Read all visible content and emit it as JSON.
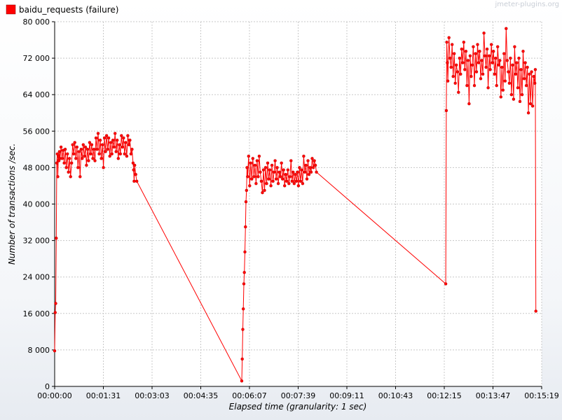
{
  "chart_data": {
    "type": "line",
    "watermark": "jmeter-plugins.org",
    "xlabel": "Elapsed time (granularity: 1 sec)",
    "ylabel": "Number of transactions /sec.",
    "ylim": [
      0,
      80000
    ],
    "xlim_seconds": [
      0,
      919
    ],
    "y_ticks": [
      0,
      8000,
      16000,
      24000,
      32000,
      40000,
      48000,
      56000,
      64000,
      72000,
      80000
    ],
    "y_tick_labels": [
      "0",
      "8 000",
      "16 000",
      "24 000",
      "32 000",
      "40 000",
      "48 000",
      "56 000",
      "64 000",
      "72 000",
      "80 000"
    ],
    "x_tick_labels": [
      "00:00:00",
      "00:01:31",
      "00:03:03",
      "00:04:35",
      "00:06:07",
      "00:07:39",
      "00:09:11",
      "00:10:43",
      "00:12:15",
      "00:13:47",
      "00:15:19"
    ],
    "grid": true,
    "legend_position": "top-left",
    "colors": {
      "series": "#ff0000",
      "grid": "#c8c8c8",
      "axis": "#000000"
    },
    "series": [
      {
        "name": "baidu_requests (failure)",
        "color": "#ff0000",
        "x_unit": "seconds elapsed",
        "points": [
          [
            0,
            7800
          ],
          [
            1,
            16200
          ],
          [
            2,
            18200
          ],
          [
            3,
            32500
          ],
          [
            4,
            49000
          ],
          [
            5,
            51000
          ],
          [
            6,
            46000
          ],
          [
            7,
            50500
          ],
          [
            8,
            49500
          ],
          [
            9,
            51500
          ],
          [
            10,
            50000
          ],
          [
            12,
            52500
          ],
          [
            14,
            50000
          ],
          [
            16,
            51800
          ],
          [
            18,
            49000
          ],
          [
            20,
            52000
          ],
          [
            22,
            48000
          ],
          [
            24,
            51000
          ],
          [
            26,
            47000
          ],
          [
            28,
            50000
          ],
          [
            30,
            46000
          ],
          [
            32,
            49000
          ],
          [
            34,
            53000
          ],
          [
            36,
            51000
          ],
          [
            38,
            53500
          ],
          [
            40,
            50000
          ],
          [
            42,
            52500
          ],
          [
            44,
            48000
          ],
          [
            46,
            51500
          ],
          [
            48,
            46000
          ],
          [
            50,
            52000
          ],
          [
            52,
            50000
          ],
          [
            54,
            53000
          ],
          [
            56,
            50500
          ],
          [
            58,
            52500
          ],
          [
            60,
            48500
          ],
          [
            62,
            52000
          ],
          [
            64,
            49500
          ],
          [
            66,
            53500
          ],
          [
            68,
            51000
          ],
          [
            70,
            53000
          ],
          [
            72,
            50000
          ],
          [
            74,
            52000
          ],
          [
            76,
            49500
          ],
          [
            78,
            54500
          ],
          [
            80,
            52000
          ],
          [
            82,
            55500
          ],
          [
            84,
            51000
          ],
          [
            86,
            54000
          ],
          [
            88,
            50000
          ],
          [
            90,
            53000
          ],
          [
            92,
            48000
          ],
          [
            94,
            54500
          ],
          [
            96,
            51500
          ],
          [
            98,
            55000
          ],
          [
            100,
            52000
          ],
          [
            102,
            54500
          ],
          [
            104,
            50500
          ],
          [
            106,
            53500
          ],
          [
            108,
            51000
          ],
          [
            110,
            54000
          ],
          [
            112,
            52500
          ],
          [
            114,
            55500
          ],
          [
            116,
            51500
          ],
          [
            118,
            54000
          ],
          [
            120,
            50000
          ],
          [
            122,
            53000
          ],
          [
            124,
            51000
          ],
          [
            126,
            55000
          ],
          [
            128,
            52500
          ],
          [
            130,
            54500
          ],
          [
            132,
            51000
          ],
          [
            134,
            53500
          ],
          [
            136,
            50500
          ],
          [
            138,
            55000
          ],
          [
            140,
            53000
          ],
          [
            142,
            54000
          ],
          [
            144,
            51000
          ],
          [
            146,
            52000
          ],
          [
            148,
            49000
          ],
          [
            149,
            47500
          ],
          [
            150,
            45000
          ],
          [
            151,
            48500
          ],
          [
            153,
            46500
          ],
          [
            155,
            45000
          ],
          [
            353,
            1200
          ],
          [
            354,
            6000
          ],
          [
            355,
            12500
          ],
          [
            356,
            17000
          ],
          [
            357,
            22500
          ],
          [
            358,
            25000
          ],
          [
            359,
            29500
          ],
          [
            360,
            35000
          ],
          [
            361,
            40500
          ],
          [
            362,
            43000
          ],
          [
            363,
            48000
          ],
          [
            364,
            46000
          ],
          [
            366,
            50500
          ],
          [
            368,
            44000
          ],
          [
            370,
            49000
          ],
          [
            372,
            45500
          ],
          [
            374,
            50000
          ],
          [
            376,
            46000
          ],
          [
            378,
            48500
          ],
          [
            380,
            44500
          ],
          [
            382,
            49500
          ],
          [
            384,
            46000
          ],
          [
            386,
            50500
          ],
          [
            388,
            47000
          ],
          [
            390,
            45000
          ],
          [
            392,
            42500
          ],
          [
            394,
            47500
          ],
          [
            396,
            43000
          ],
          [
            398,
            48000
          ],
          [
            400,
            44500
          ],
          [
            402,
            49000
          ],
          [
            404,
            45500
          ],
          [
            406,
            47500
          ],
          [
            408,
            44000
          ],
          [
            410,
            48500
          ],
          [
            412,
            45000
          ],
          [
            414,
            47000
          ],
          [
            416,
            49500
          ],
          [
            418,
            45500
          ],
          [
            420,
            48000
          ],
          [
            422,
            44500
          ],
          [
            424,
            47000
          ],
          [
            426,
            46000
          ],
          [
            428,
            49000
          ],
          [
            430,
            45500
          ],
          [
            432,
            47500
          ],
          [
            434,
            44000
          ],
          [
            436,
            46500
          ],
          [
            438,
            45000
          ],
          [
            440,
            47500
          ],
          [
            442,
            44500
          ],
          [
            444,
            46000
          ],
          [
            446,
            49500
          ],
          [
            448,
            45000
          ],
          [
            450,
            47000
          ],
          [
            452,
            44500
          ],
          [
            454,
            46500
          ],
          [
            456,
            45000
          ],
          [
            458,
            47000
          ],
          [
            460,
            44000
          ],
          [
            462,
            48000
          ],
          [
            464,
            45000
          ],
          [
            466,
            47500
          ],
          [
            468,
            44500
          ],
          [
            470,
            50500
          ],
          [
            472,
            47000
          ],
          [
            474,
            48500
          ],
          [
            476,
            45500
          ],
          [
            478,
            49500
          ],
          [
            480,
            46500
          ],
          [
            482,
            48000
          ],
          [
            484,
            47000
          ],
          [
            486,
            50000
          ],
          [
            488,
            48000
          ],
          [
            490,
            49500
          ],
          [
            492,
            48500
          ],
          [
            494,
            47000
          ],
          [
            738,
            22500
          ],
          [
            739,
            60500
          ],
          [
            740,
            75500
          ],
          [
            741,
            71000
          ],
          [
            742,
            67000
          ],
          [
            744,
            76500
          ],
          [
            746,
            72000
          ],
          [
            748,
            70000
          ],
          [
            750,
            75000
          ],
          [
            752,
            68000
          ],
          [
            754,
            73000
          ],
          [
            756,
            66500
          ],
          [
            758,
            70500
          ],
          [
            760,
            69000
          ],
          [
            762,
            64500
          ],
          [
            764,
            72000
          ],
          [
            766,
            68500
          ],
          [
            768,
            74000
          ],
          [
            770,
            71000
          ],
          [
            772,
            75500
          ],
          [
            774,
            69500
          ],
          [
            776,
            73500
          ],
          [
            778,
            66000
          ],
          [
            780,
            71500
          ],
          [
            782,
            62000
          ],
          [
            784,
            72500
          ],
          [
            786,
            68000
          ],
          [
            788,
            70500
          ],
          [
            790,
            74500
          ],
          [
            792,
            66000
          ],
          [
            794,
            73000
          ],
          [
            796,
            69000
          ],
          [
            798,
            75000
          ],
          [
            800,
            71000
          ],
          [
            802,
            73500
          ],
          [
            804,
            67500
          ],
          [
            806,
            71500
          ],
          [
            808,
            68500
          ],
          [
            810,
            77500
          ],
          [
            812,
            72500
          ],
          [
            814,
            70000
          ],
          [
            816,
            74000
          ],
          [
            818,
            65500
          ],
          [
            820,
            72500
          ],
          [
            822,
            69500
          ],
          [
            824,
            75000
          ],
          [
            826,
            71000
          ],
          [
            828,
            73500
          ],
          [
            830,
            68500
          ],
          [
            832,
            72000
          ],
          [
            834,
            66000
          ],
          [
            836,
            74500
          ],
          [
            838,
            70500
          ],
          [
            840,
            71500
          ],
          [
            842,
            63500
          ],
          [
            844,
            70000
          ],
          [
            846,
            65000
          ],
          [
            848,
            73000
          ],
          [
            850,
            67000
          ],
          [
            852,
            78500
          ],
          [
            854,
            71500
          ],
          [
            856,
            69000
          ],
          [
            858,
            66500
          ],
          [
            860,
            72000
          ],
          [
            862,
            64000
          ],
          [
            864,
            70500
          ],
          [
            866,
            63000
          ],
          [
            868,
            74500
          ],
          [
            870,
            68500
          ],
          [
            872,
            71000
          ],
          [
            874,
            65500
          ],
          [
            876,
            72000
          ],
          [
            878,
            62500
          ],
          [
            880,
            69500
          ],
          [
            882,
            64000
          ],
          [
            884,
            73500
          ],
          [
            886,
            67500
          ],
          [
            888,
            71000
          ],
          [
            890,
            66000
          ],
          [
            892,
            70000
          ],
          [
            894,
            60000
          ],
          [
            896,
            68500
          ],
          [
            898,
            62000
          ],
          [
            900,
            69000
          ],
          [
            902,
            61500
          ],
          [
            904,
            68000
          ],
          [
            906,
            66500
          ],
          [
            907,
            69500
          ],
          [
            908,
            16500
          ]
        ]
      }
    ]
  }
}
